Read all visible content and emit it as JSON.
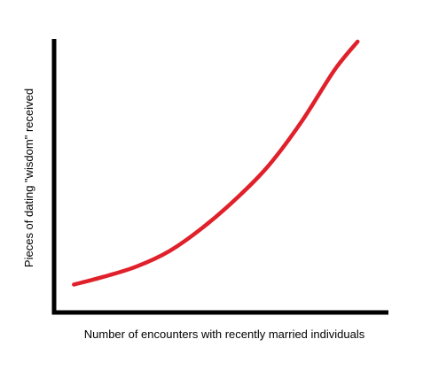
{
  "chart_data": {
    "type": "line",
    "title": "",
    "xlabel": "Number of encounters with recently married individuals",
    "ylabel": "Pieces of dating \"wisdom\" received",
    "ticks_shown": false,
    "grid": false,
    "legend": "none",
    "xlim": [
      0,
      10
    ],
    "ylim": [
      0,
      10
    ],
    "series": [
      {
        "color": "#e0202a",
        "x": [
          0.6,
          1.5,
          2.5,
          3.5,
          4.5,
          5.5,
          6.5,
          7.5,
          8.5,
          9.2
        ],
        "y": [
          0.6,
          0.9,
          1.3,
          1.9,
          2.8,
          3.9,
          5.2,
          6.9,
          8.9,
          10.0
        ]
      }
    ],
    "axis_color": "#000000"
  }
}
